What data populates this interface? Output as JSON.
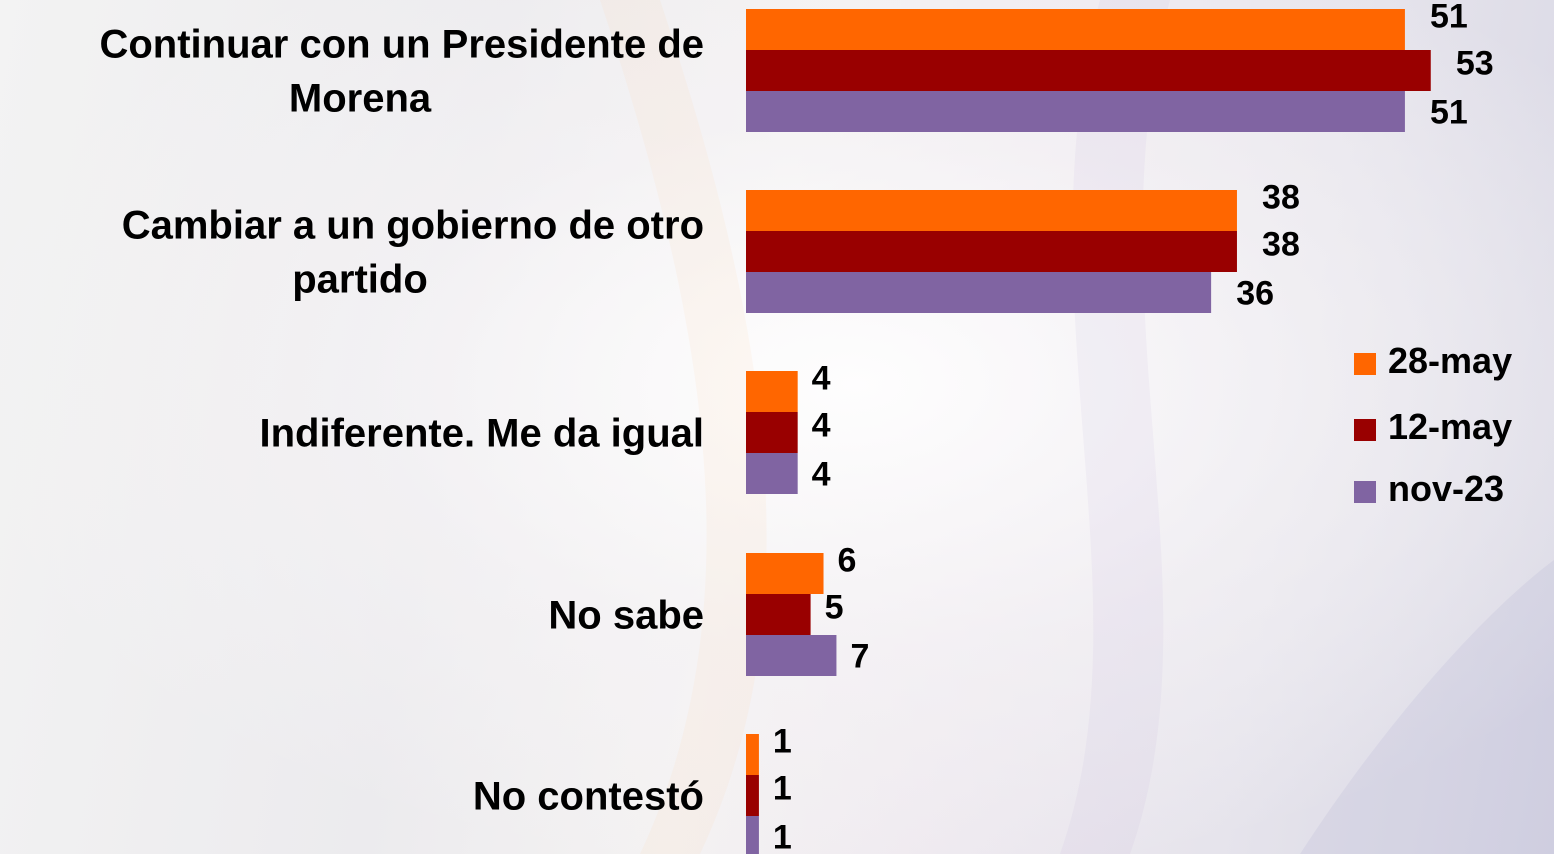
{
  "chart_data": {
    "type": "bar",
    "orientation": "horizontal",
    "categories": [
      [
        "Continuar con un Presidente de",
        "Morena"
      ],
      [
        "Cambiar a un gobierno de otro",
        "partido"
      ],
      [
        "Indiferente. Me da igual"
      ],
      [
        "No sabe"
      ],
      [
        "No contestó"
      ]
    ],
    "series": [
      {
        "name": "28-may",
        "color": "#FF6600",
        "values": [
          51,
          38,
          4,
          6,
          1
        ]
      },
      {
        "name": "12-may",
        "color": "#990000",
        "values": [
          53,
          38,
          4,
          5,
          1
        ]
      },
      {
        "name": "nov-23",
        "color": "#8064A2",
        "values": [
          51,
          36,
          4,
          7,
          1
        ]
      }
    ],
    "xlim": [
      0,
      60
    ],
    "grid": false,
    "legend_position": "right"
  }
}
